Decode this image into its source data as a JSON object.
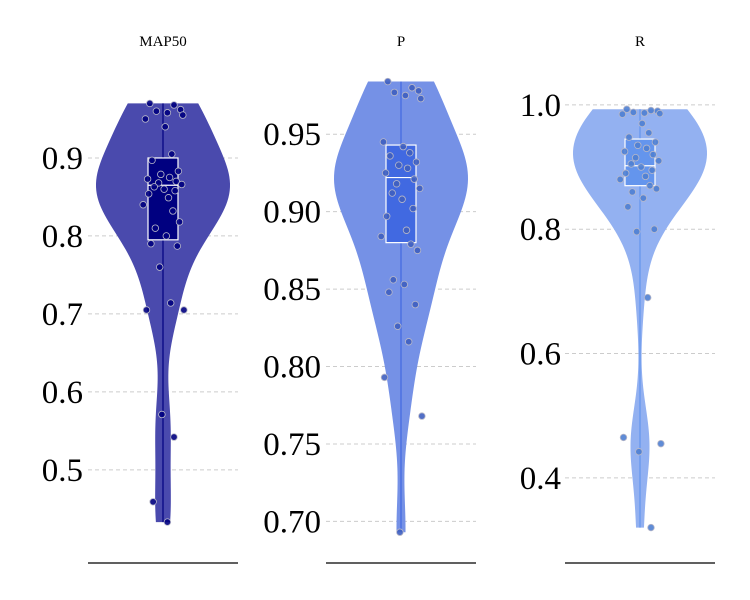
{
  "chart_data": [
    {
      "type": "violin",
      "title": "MAP50",
      "ylim": [
        0.41,
        1.0
      ],
      "yticks": [
        0.5,
        0.6,
        0.7,
        0.8,
        0.9
      ],
      "ytick_labels": [
        "0.5",
        "0.6",
        "0.7",
        "0.8",
        "0.9"
      ],
      "grid": true,
      "violin_color": "#4a4aad",
      "box_color": "#000080",
      "point_color": "#00007f",
      "stats": {
        "min": 0.433,
        "q1": 0.795,
        "median": 0.865,
        "q3": 0.9,
        "max": 0.97
      },
      "points": [
        0.97,
        0.968,
        0.962,
        0.96,
        0.958,
        0.955,
        0.95,
        0.94,
        0.905,
        0.897,
        0.883,
        0.879,
        0.875,
        0.873,
        0.87,
        0.868,
        0.866,
        0.863,
        0.86,
        0.858,
        0.854,
        0.849,
        0.84,
        0.832,
        0.818,
        0.81,
        0.8,
        0.79,
        0.787,
        0.76,
        0.714,
        0.705,
        0.705,
        0.571,
        0.542,
        0.459,
        0.433
      ]
    },
    {
      "type": "violin",
      "title": "P",
      "ylim": [
        0.688,
        0.985
      ],
      "yticks": [
        0.7,
        0.75,
        0.8,
        0.85,
        0.9,
        0.95
      ],
      "ytick_labels": [
        "0.70",
        "0.75",
        "0.80",
        "0.85",
        "0.90",
        "0.95"
      ],
      "grid": true,
      "violin_color": "#7591e6",
      "box_color": "#4169e1",
      "point_color": "#3f5fc0",
      "stats": {
        "min": 0.693,
        "q1": 0.88,
        "median": 0.922,
        "q3": 0.943,
        "max": 0.984
      },
      "points": [
        0.984,
        0.98,
        0.978,
        0.977,
        0.975,
        0.973,
        0.945,
        0.942,
        0.938,
        0.936,
        0.932,
        0.93,
        0.928,
        0.925,
        0.921,
        0.918,
        0.915,
        0.912,
        0.908,
        0.902,
        0.897,
        0.888,
        0.884,
        0.879,
        0.875,
        0.856,
        0.853,
        0.848,
        0.84,
        0.826,
        0.816,
        0.793,
        0.768,
        0.693
      ]
    },
    {
      "type": "violin",
      "title": "R",
      "ylim": [
        0.3,
        1.04
      ],
      "yticks": [
        0.4,
        0.6,
        0.8,
        1.0
      ],
      "ytick_labels": [
        "0.4",
        "0.6",
        "0.8",
        "1.0"
      ],
      "grid": true,
      "violin_color": "#93b1f1",
      "box_color": "#6495ed",
      "point_color": "#4f7fd1",
      "stats": {
        "min": 0.32,
        "q1": 0.87,
        "median": 0.902,
        "q3": 0.945,
        "max": 0.993
      },
      "points": [
        0.993,
        0.991,
        0.99,
        0.988,
        0.987,
        0.986,
        0.985,
        0.97,
        0.955,
        0.948,
        0.94,
        0.935,
        0.93,
        0.925,
        0.92,
        0.915,
        0.91,
        0.905,
        0.9,
        0.895,
        0.89,
        0.885,
        0.88,
        0.87,
        0.865,
        0.86,
        0.85,
        0.836,
        0.8,
        0.796,
        0.69,
        0.465,
        0.455,
        0.442,
        0.32
      ]
    }
  ]
}
